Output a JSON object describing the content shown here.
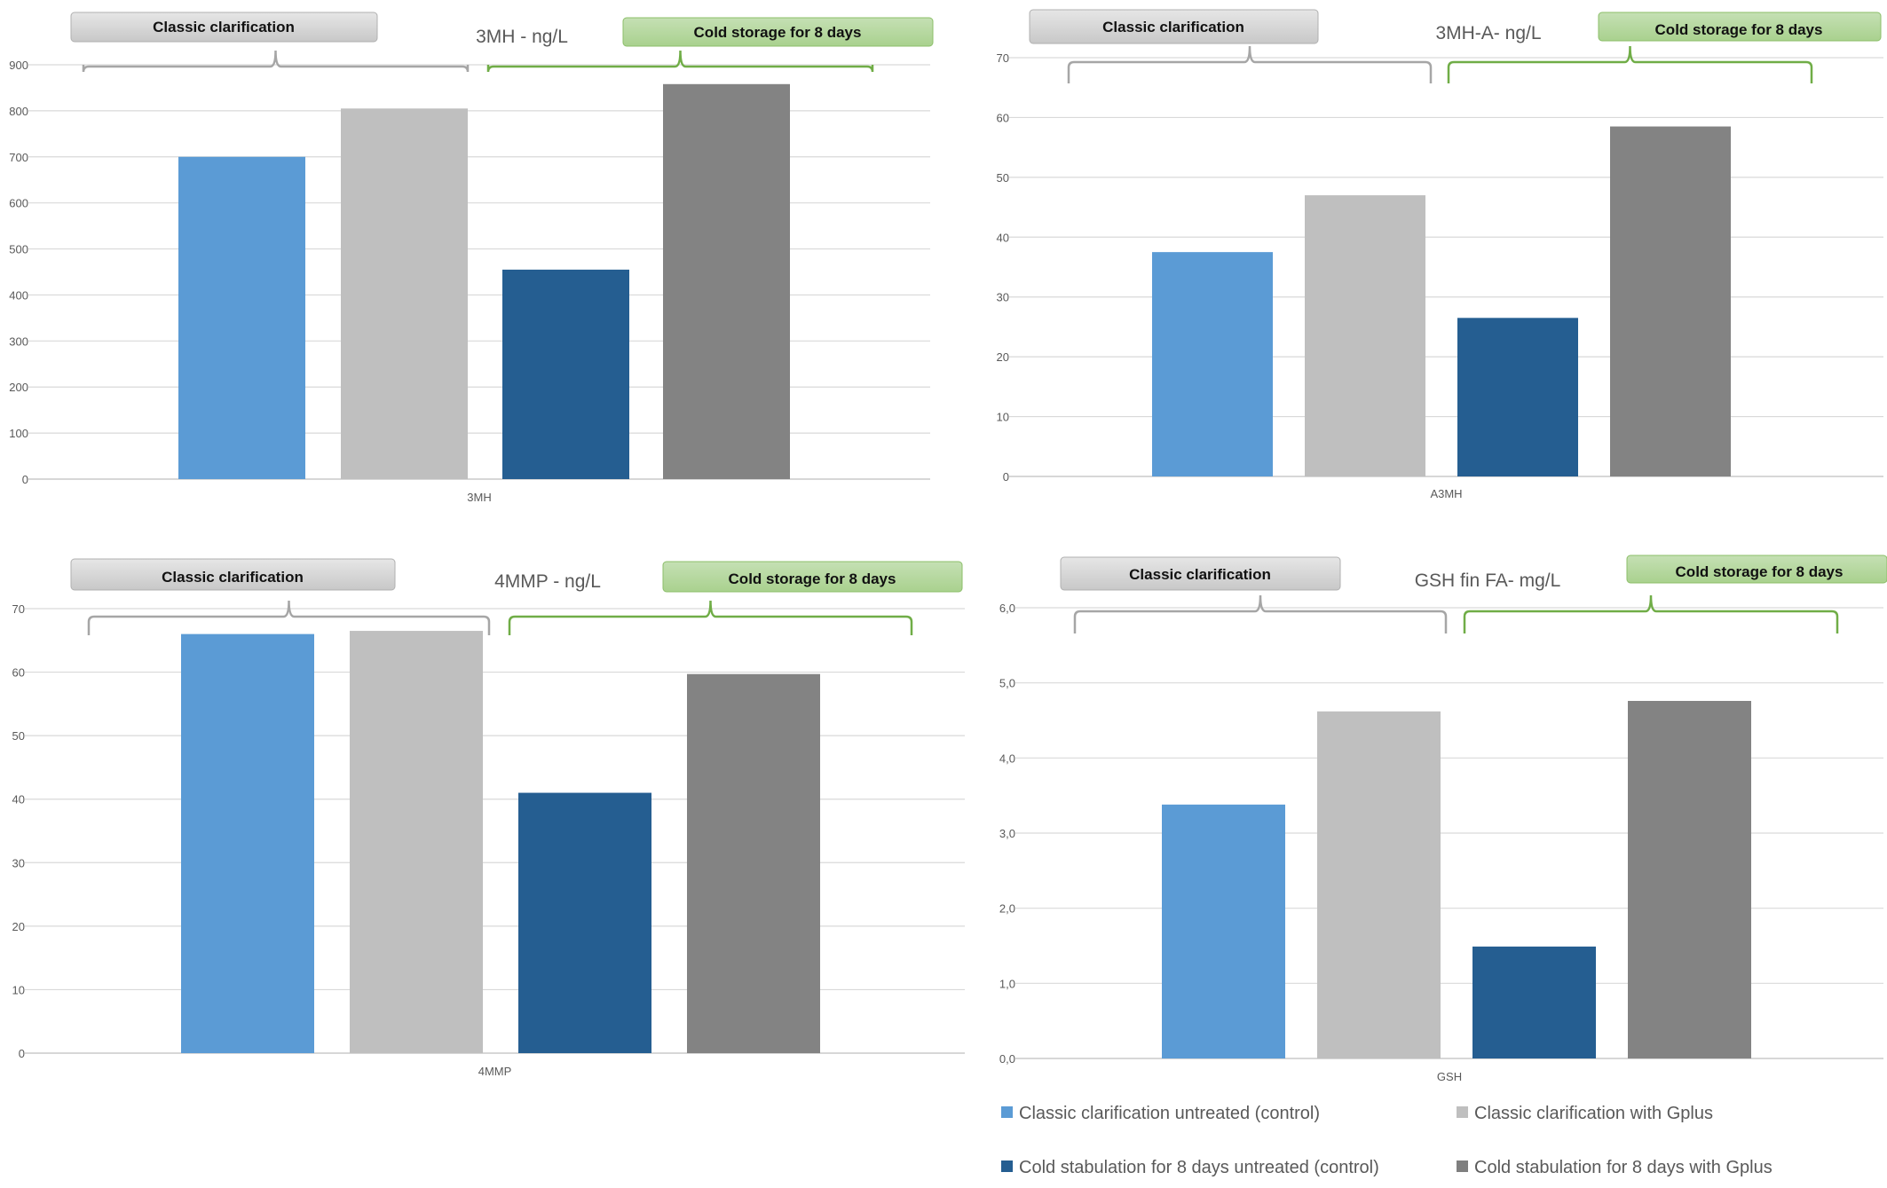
{
  "chart_data": [
    {
      "type": "bar",
      "title": "3MH - ng/L",
      "categories": [
        "3MH"
      ],
      "ylim": [
        0,
        900
      ],
      "yticks": [
        "0",
        "100",
        "200",
        "300",
        "400",
        "500",
        "600",
        "700",
        "800",
        "900"
      ],
      "series": [
        {
          "name": "Classic clarification untreated (control)",
          "values": [
            700
          ]
        },
        {
          "name": "Classic clarification with Gplus",
          "values": [
            805
          ]
        },
        {
          "name": "Cold stabulation for 8 days untreated (control)",
          "values": [
            455
          ]
        },
        {
          "name": "Cold stabulation for 8 days with Gplus",
          "values": [
            858
          ]
        }
      ],
      "annotations": [
        "Classic clarification",
        "Cold storage for 8 days"
      ],
      "grid": true
    },
    {
      "type": "bar",
      "title": "3MH-A- ng/L",
      "categories": [
        "A3MH"
      ],
      "ylim": [
        0,
        70
      ],
      "yticks": [
        "0",
        "10",
        "20",
        "30",
        "40",
        "50",
        "60",
        "70"
      ],
      "series": [
        {
          "name": "Classic clarification untreated (control)",
          "values": [
            37.5
          ]
        },
        {
          "name": "Classic clarification with Gplus",
          "values": [
            47
          ]
        },
        {
          "name": "Cold stabulation for 8 days untreated (control)",
          "values": [
            26.5
          ]
        },
        {
          "name": "Cold stabulation for 8 days with Gplus",
          "values": [
            58.5
          ]
        }
      ],
      "annotations": [
        "Classic clarification",
        "Cold storage for 8 days"
      ],
      "grid": true
    },
    {
      "type": "bar",
      "title": "4MMP - ng/L",
      "categories": [
        "4MMP"
      ],
      "ylim": [
        0,
        70
      ],
      "yticks": [
        "0",
        "10",
        "20",
        "30",
        "40",
        "50",
        "60",
        "70"
      ],
      "series": [
        {
          "name": "Classic clarification untreated (control)",
          "values": [
            66
          ]
        },
        {
          "name": "Classic clarification with Gplus",
          "values": [
            66.5
          ]
        },
        {
          "name": "Cold stabulation for 8 days untreated (control)",
          "values": [
            41
          ]
        },
        {
          "name": "Cold stabulation for 8 days with Gplus",
          "values": [
            59.7
          ]
        }
      ],
      "annotations": [
        "Classic clarification",
        "Cold storage for 8 days"
      ],
      "grid": true
    },
    {
      "type": "bar",
      "title": "GSH fin FA- mg/L",
      "categories": [
        "GSH"
      ],
      "ylim": [
        0,
        6
      ],
      "yticks": [
        "0,0",
        "1,0",
        "2,0",
        "3,0",
        "4,0",
        "5,0",
        "6,0"
      ],
      "series": [
        {
          "name": "Classic clarification untreated (control)",
          "values": [
            3.38
          ]
        },
        {
          "name": "Classic clarification with Gplus",
          "values": [
            4.62
          ]
        },
        {
          "name": "Cold stabulation for 8 days untreated (control)",
          "values": [
            1.49
          ]
        },
        {
          "name": "Cold stabulation for 8 days with Gplus",
          "values": [
            4.76
          ]
        }
      ],
      "annotations": [
        "Classic clarification",
        "Cold storage for 8 days"
      ],
      "grid": true
    }
  ],
  "legend": {
    "placement": "bottom-right",
    "items": [
      {
        "label": "Classic clarification untreated (control)",
        "color": "#5b9bd5"
      },
      {
        "label": "Classic clarification with Gplus",
        "color": "#bfbfbf"
      },
      {
        "label": "Cold stabulation for 8 days untreated (control)",
        "color": "#255e91"
      },
      {
        "label": "Cold stabulation for 8 days with Gplus",
        "color": "#7f7f7f"
      }
    ]
  },
  "colors": {
    "series": [
      "#5b9bd5",
      "#bfbfbf",
      "#255e91",
      "#838383"
    ],
    "gridline": "#d9d9d9",
    "classic_box": "#d0d0d0",
    "cold_box": "#a9d18e",
    "classic_bracket": "#a6a6a6",
    "cold_bracket": "#70ad47"
  }
}
